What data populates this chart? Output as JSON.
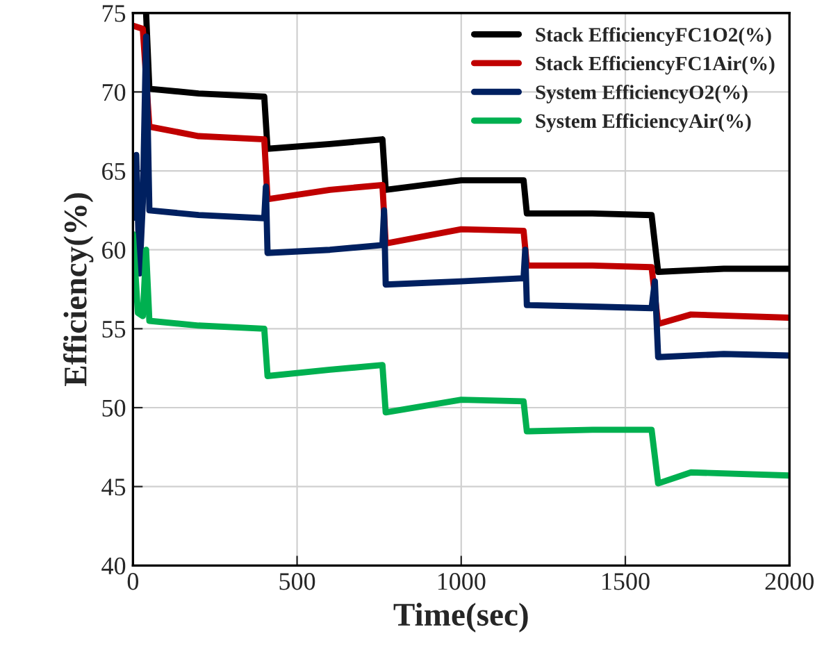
{
  "chart_data": {
    "type": "line",
    "xlabel": "Time(sec)",
    "ylabel": "Efficiency(%)",
    "xlim": [
      0,
      2000
    ],
    "xticks": [
      0,
      500,
      1000,
      1500,
      2000
    ],
    "ylim": [
      40,
      75
    ],
    "yticks": [
      40,
      45,
      50,
      55,
      60,
      65,
      70,
      75
    ],
    "grid": true,
    "legend": "top right",
    "marker": "none",
    "line_style": "solid",
    "series": [
      {
        "name": "Stack EfficiencyFC1O2(%)",
        "color": "#000000",
        "x": [
          40,
          50,
          200,
          400,
          410,
          600,
          760,
          770,
          1000,
          1190,
          1200,
          1400,
          1580,
          1600,
          1800,
          2000
        ],
        "values": [
          75,
          70.2,
          69.9,
          69.7,
          66.4,
          66.7,
          67.0,
          63.8,
          64.4,
          64.4,
          62.3,
          62.3,
          62.2,
          58.6,
          58.8,
          58.8
        ]
      },
      {
        "name": "Stack EfficiencyFC1Air(%)",
        "color": "#c00000",
        "x": [
          0,
          30,
          50,
          200,
          400,
          410,
          600,
          760,
          770,
          1000,
          1190,
          1200,
          1400,
          1580,
          1600,
          1700,
          2000
        ],
        "values": [
          74.2,
          74.0,
          67.8,
          67.2,
          67.0,
          63.2,
          63.8,
          64.1,
          60.4,
          61.3,
          61.2,
          59.0,
          59.0,
          58.9,
          55.3,
          55.9,
          55.7
        ]
      },
      {
        "name": "System EfficiencyO2(%)",
        "color": "#002060",
        "x": [
          0,
          10,
          20,
          30,
          40,
          50,
          200,
          400,
          405,
          410,
          600,
          760,
          765,
          770,
          1000,
          1190,
          1195,
          1200,
          1400,
          1580,
          1590,
          1600,
          1800,
          2000
        ],
        "values": [
          62,
          66,
          58.5,
          63,
          73.5,
          62.5,
          62.2,
          62.0,
          64,
          59.8,
          60.0,
          60.3,
          62.5,
          57.8,
          58.0,
          58.2,
          60,
          56.5,
          56.4,
          56.3,
          58,
          53.2,
          53.4,
          53.3
        ]
      },
      {
        "name": "System EfficiencyAir(%)",
        "color": "#00b050",
        "x": [
          0,
          15,
          30,
          40,
          50,
          200,
          400,
          410,
          600,
          760,
          770,
          1000,
          1190,
          1200,
          1400,
          1580,
          1600,
          1700,
          2000
        ],
        "values": [
          61,
          56,
          55.8,
          60,
          55.5,
          55.2,
          55.0,
          52.0,
          52.4,
          52.7,
          49.7,
          50.5,
          50.4,
          48.5,
          48.6,
          48.6,
          45.2,
          45.9,
          45.7
        ]
      }
    ]
  }
}
